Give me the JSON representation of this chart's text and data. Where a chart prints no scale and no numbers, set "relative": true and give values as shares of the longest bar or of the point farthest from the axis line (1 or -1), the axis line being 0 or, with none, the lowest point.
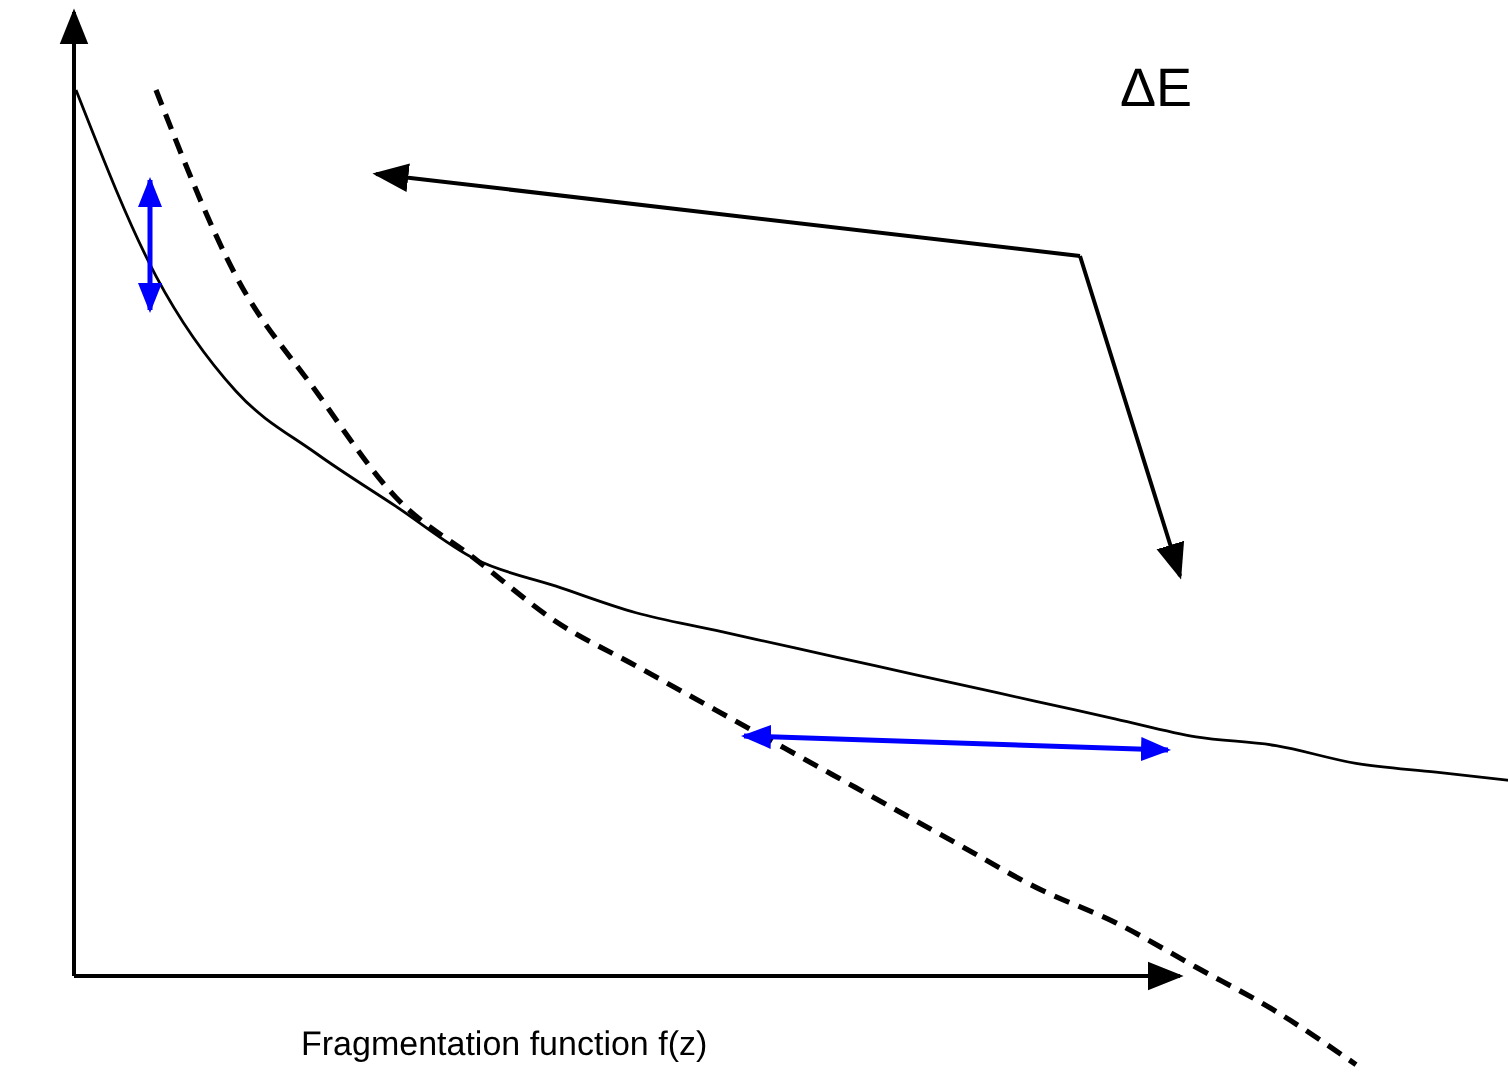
{
  "chart_data": {
    "type": "line",
    "relative": true,
    "xlabel": "Fragmentation function f(z)",
    "annotations": [
      "ΔE"
    ],
    "categories": [
      null,
      null,
      null,
      null,
      null,
      null,
      null,
      null,
      null,
      null,
      null,
      null,
      null,
      null,
      null,
      null,
      null,
      null,
      null
    ],
    "series": [
      {
        "color": "#000000",
        "line_style": "solid",
        "values": [
          1.0,
          0.79,
          0.66,
          0.59,
          0.53,
          0.47,
          0.44,
          0.41,
          0.39,
          0.37,
          0.35,
          0.33,
          0.31,
          0.29,
          0.27,
          0.26,
          0.24,
          0.23,
          0.22
        ]
      },
      {
        "color": "#000000",
        "line_style": "dashed",
        "values": [
          null,
          1.0,
          0.79,
          0.66,
          0.54,
          0.47,
          0.4,
          0.35,
          0.3,
          0.25,
          0.2,
          0.15,
          0.1,
          0.06,
          0.01,
          -0.04,
          -0.1,
          null,
          null
        ]
      }
    ]
  }
}
